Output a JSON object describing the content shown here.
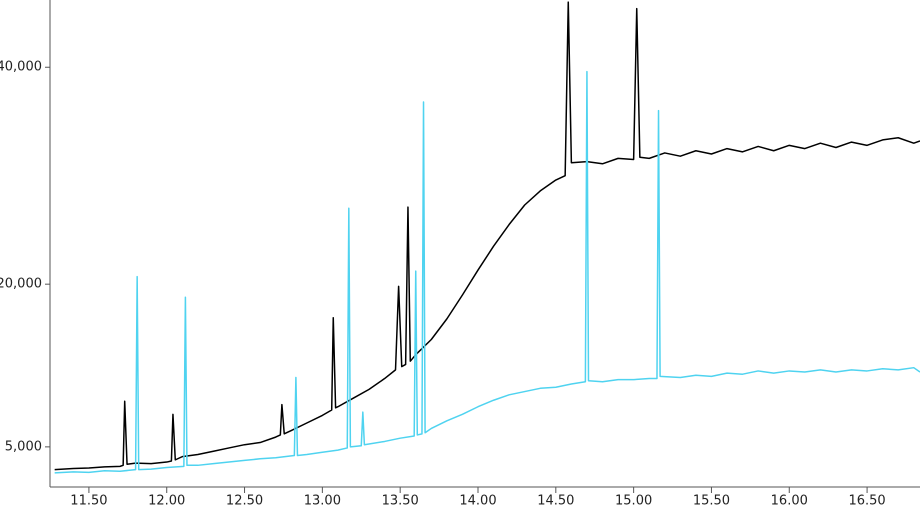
{
  "chart_data": {
    "type": "line",
    "xlim": [
      11.25,
      16.84
    ],
    "ylim": [
      1300,
      46200
    ],
    "xticks": [
      {
        "value": 11.5,
        "label": "11.50"
      },
      {
        "value": 12,
        "label": "12.00"
      },
      {
        "value": 12.5,
        "label": "12.50"
      },
      {
        "value": 13,
        "label": "13.00"
      },
      {
        "value": 13.5,
        "label": "13.50"
      },
      {
        "value": 14,
        "label": "14.00"
      },
      {
        "value": 14.5,
        "label": "14.50"
      },
      {
        "value": 15,
        "label": "15.00"
      },
      {
        "value": 15.5,
        "label": "15.50"
      },
      {
        "value": 16,
        "label": "16.00"
      },
      {
        "value": 16.5,
        "label": "16.50"
      }
    ],
    "yticks": [
      {
        "value": 5000,
        "label": "5,000"
      },
      {
        "value": 20000,
        "label": "20,000"
      },
      {
        "value": 40000,
        "label": "40,000"
      }
    ],
    "series": [
      {
        "color": "#000000",
        "x": [
          11.28,
          11.4,
          11.5,
          11.6,
          11.7,
          11.72,
          11.73,
          11.745,
          11.8,
          11.9,
          12.0,
          12.03,
          12.04,
          12.055,
          12.1,
          12.2,
          12.3,
          12.4,
          12.5,
          12.6,
          12.7,
          12.73,
          12.74,
          12.755,
          12.8,
          12.9,
          13.0,
          13.06,
          13.07,
          13.085,
          13.1,
          13.2,
          13.3,
          13.4,
          13.47,
          13.49,
          13.51,
          13.535,
          13.55,
          13.565,
          13.6,
          13.7,
          13.8,
          13.9,
          14.0,
          14.1,
          14.2,
          14.3,
          14.4,
          14.5,
          14.56,
          14.58,
          14.6,
          14.7,
          14.8,
          14.9,
          15.0,
          15.02,
          15.04,
          15.1,
          15.2,
          15.3,
          15.4,
          15.5,
          15.6,
          15.7,
          15.8,
          15.9,
          16.0,
          16.1,
          16.2,
          16.3,
          16.4,
          16.5,
          16.6,
          16.7,
          16.8,
          16.84
        ],
        "values": [
          2900,
          3000,
          3050,
          3150,
          3200,
          3300,
          9200,
          3400,
          3500,
          3450,
          3600,
          3700,
          8000,
          3800,
          4100,
          4300,
          4600,
          4900,
          5200,
          5400,
          5900,
          6100,
          8900,
          6200,
          6500,
          7200,
          7900,
          8400,
          16900,
          8600,
          8700,
          9500,
          10300,
          11300,
          12100,
          19800,
          12400,
          12600,
          27100,
          12900,
          13500,
          14900,
          16800,
          19000,
          21300,
          23500,
          25500,
          27300,
          28600,
          29600,
          30000,
          46000,
          31200,
          31300,
          31100,
          31600,
          31500,
          45400,
          31700,
          31600,
          32100,
          31800,
          32300,
          32000,
          32500,
          32200,
          32700,
          32300,
          32800,
          32500,
          33000,
          32600,
          33100,
          32800,
          33300,
          33500,
          33000,
          33200
        ]
      },
      {
        "color": "#4fd3f0",
        "x": [
          11.28,
          11.4,
          11.5,
          11.6,
          11.7,
          11.8,
          11.81,
          11.82,
          11.9,
          12.0,
          12.11,
          12.12,
          12.13,
          12.2,
          12.3,
          12.4,
          12.5,
          12.6,
          12.7,
          12.82,
          12.83,
          12.84,
          12.9,
          13.0,
          13.1,
          13.16,
          13.17,
          13.18,
          13.25,
          13.26,
          13.27,
          13.4,
          13.5,
          13.59,
          13.6,
          13.61,
          13.64,
          13.65,
          13.66,
          13.7,
          13.8,
          13.9,
          14.0,
          14.1,
          14.2,
          14.3,
          14.4,
          14.5,
          14.6,
          14.69,
          14.7,
          14.71,
          14.8,
          14.9,
          15.0,
          15.1,
          15.15,
          15.16,
          15.17,
          15.3,
          15.4,
          15.5,
          15.6,
          15.7,
          15.8,
          15.9,
          16.0,
          16.1,
          16.2,
          16.3,
          16.4,
          16.5,
          16.6,
          16.7,
          16.8,
          16.84
        ],
        "values": [
          2600,
          2700,
          2650,
          2800,
          2750,
          2900,
          20700,
          2900,
          2950,
          3100,
          3200,
          18800,
          3300,
          3300,
          3450,
          3600,
          3750,
          3900,
          4000,
          4200,
          11400,
          4200,
          4300,
          4500,
          4700,
          4900,
          27000,
          5000,
          5100,
          8200,
          5200,
          5500,
          5800,
          6000,
          21200,
          6100,
          6200,
          36800,
          6300,
          6700,
          7400,
          8000,
          8700,
          9300,
          9800,
          10100,
          10400,
          10500,
          10800,
          11000,
          39600,
          11100,
          11000,
          11200,
          11200,
          11300,
          11300,
          36000,
          11500,
          11400,
          11600,
          11500,
          11800,
          11700,
          12000,
          11800,
          12000,
          11900,
          12100,
          11900,
          12100,
          12000,
          12200,
          12100,
          12300,
          11900
        ]
      }
    ]
  }
}
